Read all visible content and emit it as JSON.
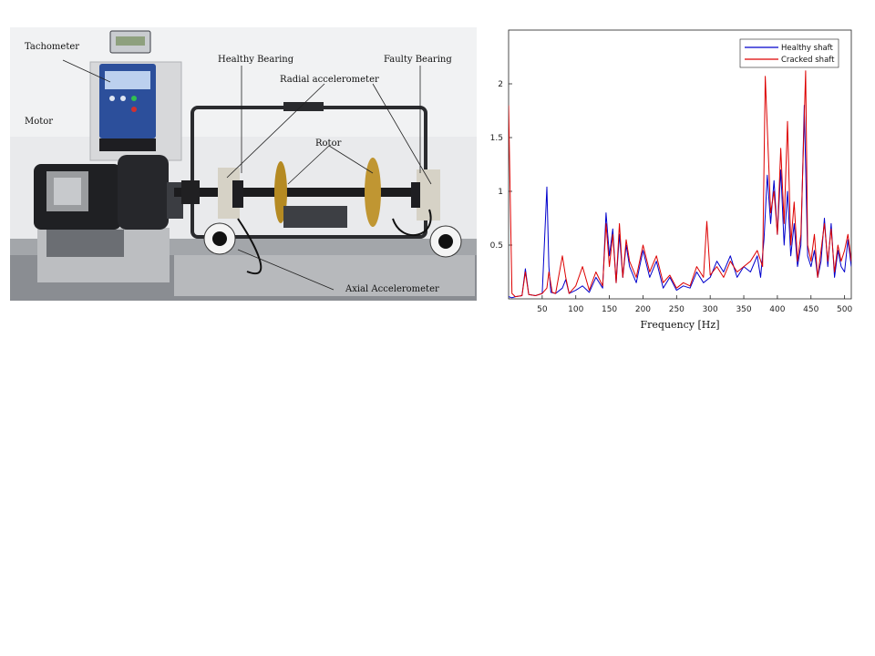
{
  "photo": {
    "labels": {
      "tachometer": "Tachometer",
      "motor": "Motor",
      "healthy_bearing": "Healthy Bearing",
      "radial_accelerometer": "Radial accelerometer",
      "faulty_bearing": "Faulty Bearing",
      "rotor": "Rotor",
      "axial_accelerometer": "Axial Accelerometer"
    }
  },
  "chart_data": {
    "type": "line",
    "title": "",
    "xlabel": "Frequency [Hz]",
    "ylabel": "",
    "xlim": [
      0,
      510
    ],
    "ylim": [
      0,
      2.5
    ],
    "xticks": [
      50,
      100,
      150,
      200,
      250,
      300,
      350,
      400,
      450,
      500
    ],
    "yticks": [
      0.5,
      1,
      1.5,
      2
    ],
    "legend_position": "top-right",
    "grid": false,
    "series": [
      {
        "name": "Healthy shaft",
        "color": "#0000cc",
        "x": [
          0,
          5,
          10,
          20,
          25,
          30,
          40,
          50,
          57,
          60,
          63,
          70,
          80,
          85,
          90,
          100,
          110,
          120,
          130,
          140,
          145,
          150,
          155,
          160,
          165,
          170,
          175,
          180,
          190,
          200,
          210,
          220,
          230,
          240,
          250,
          260,
          270,
          280,
          290,
          300,
          310,
          320,
          330,
          340,
          350,
          360,
          370,
          375,
          380,
          385,
          390,
          395,
          400,
          405,
          410,
          415,
          420,
          425,
          430,
          435,
          440,
          445,
          450,
          455,
          460,
          465,
          470,
          475,
          480,
          485,
          490,
          495,
          500,
          505,
          510
        ],
        "y": [
          0.02,
          0.01,
          0.02,
          0.03,
          0.28,
          0.04,
          0.03,
          0.05,
          1.04,
          0.3,
          0.06,
          0.05,
          0.1,
          0.18,
          0.05,
          0.08,
          0.12,
          0.06,
          0.2,
          0.1,
          0.8,
          0.4,
          0.65,
          0.15,
          0.6,
          0.2,
          0.5,
          0.3,
          0.15,
          0.45,
          0.2,
          0.35,
          0.1,
          0.2,
          0.08,
          0.12,
          0.1,
          0.25,
          0.15,
          0.2,
          0.35,
          0.25,
          0.4,
          0.2,
          0.3,
          0.25,
          0.4,
          0.2,
          0.55,
          1.15,
          0.7,
          1.1,
          0.6,
          1.2,
          0.5,
          1.0,
          0.4,
          0.7,
          0.3,
          0.5,
          1.8,
          0.4,
          0.3,
          0.45,
          0.2,
          0.35,
          0.75,
          0.3,
          0.7,
          0.2,
          0.45,
          0.3,
          0.25,
          0.55,
          0.3
        ]
      },
      {
        "name": "Cracked shaft",
        "color": "#dd0000",
        "x": [
          0,
          5,
          10,
          20,
          25,
          30,
          40,
          50,
          57,
          60,
          65,
          70,
          80,
          85,
          90,
          100,
          110,
          120,
          130,
          140,
          145,
          150,
          155,
          160,
          165,
          170,
          175,
          180,
          190,
          200,
          210,
          220,
          230,
          240,
          250,
          260,
          270,
          280,
          290,
          295,
          300,
          310,
          320,
          330,
          340,
          350,
          360,
          370,
          378,
          382,
          390,
          395,
          400,
          405,
          410,
          415,
          420,
          425,
          430,
          435,
          442,
          445,
          450,
          455,
          460,
          465,
          470,
          475,
          480,
          485,
          490,
          495,
          500,
          505,
          510
        ],
        "y": [
          1.8,
          0.05,
          0.02,
          0.03,
          0.25,
          0.04,
          0.03,
          0.05,
          0.1,
          0.25,
          0.06,
          0.05,
          0.4,
          0.2,
          0.05,
          0.12,
          0.3,
          0.08,
          0.25,
          0.12,
          0.7,
          0.3,
          0.6,
          0.15,
          0.7,
          0.2,
          0.55,
          0.35,
          0.2,
          0.5,
          0.25,
          0.4,
          0.15,
          0.22,
          0.1,
          0.15,
          0.12,
          0.3,
          0.2,
          0.72,
          0.22,
          0.3,
          0.2,
          0.35,
          0.25,
          0.3,
          0.35,
          0.45,
          0.3,
          2.07,
          0.8,
          1.0,
          0.6,
          1.4,
          0.7,
          1.65,
          0.5,
          0.9,
          0.35,
          0.6,
          2.12,
          0.5,
          0.35,
          0.6,
          0.2,
          0.45,
          0.7,
          0.35,
          0.65,
          0.25,
          0.5,
          0.35,
          0.45,
          0.6,
          0.35
        ]
      }
    ]
  }
}
